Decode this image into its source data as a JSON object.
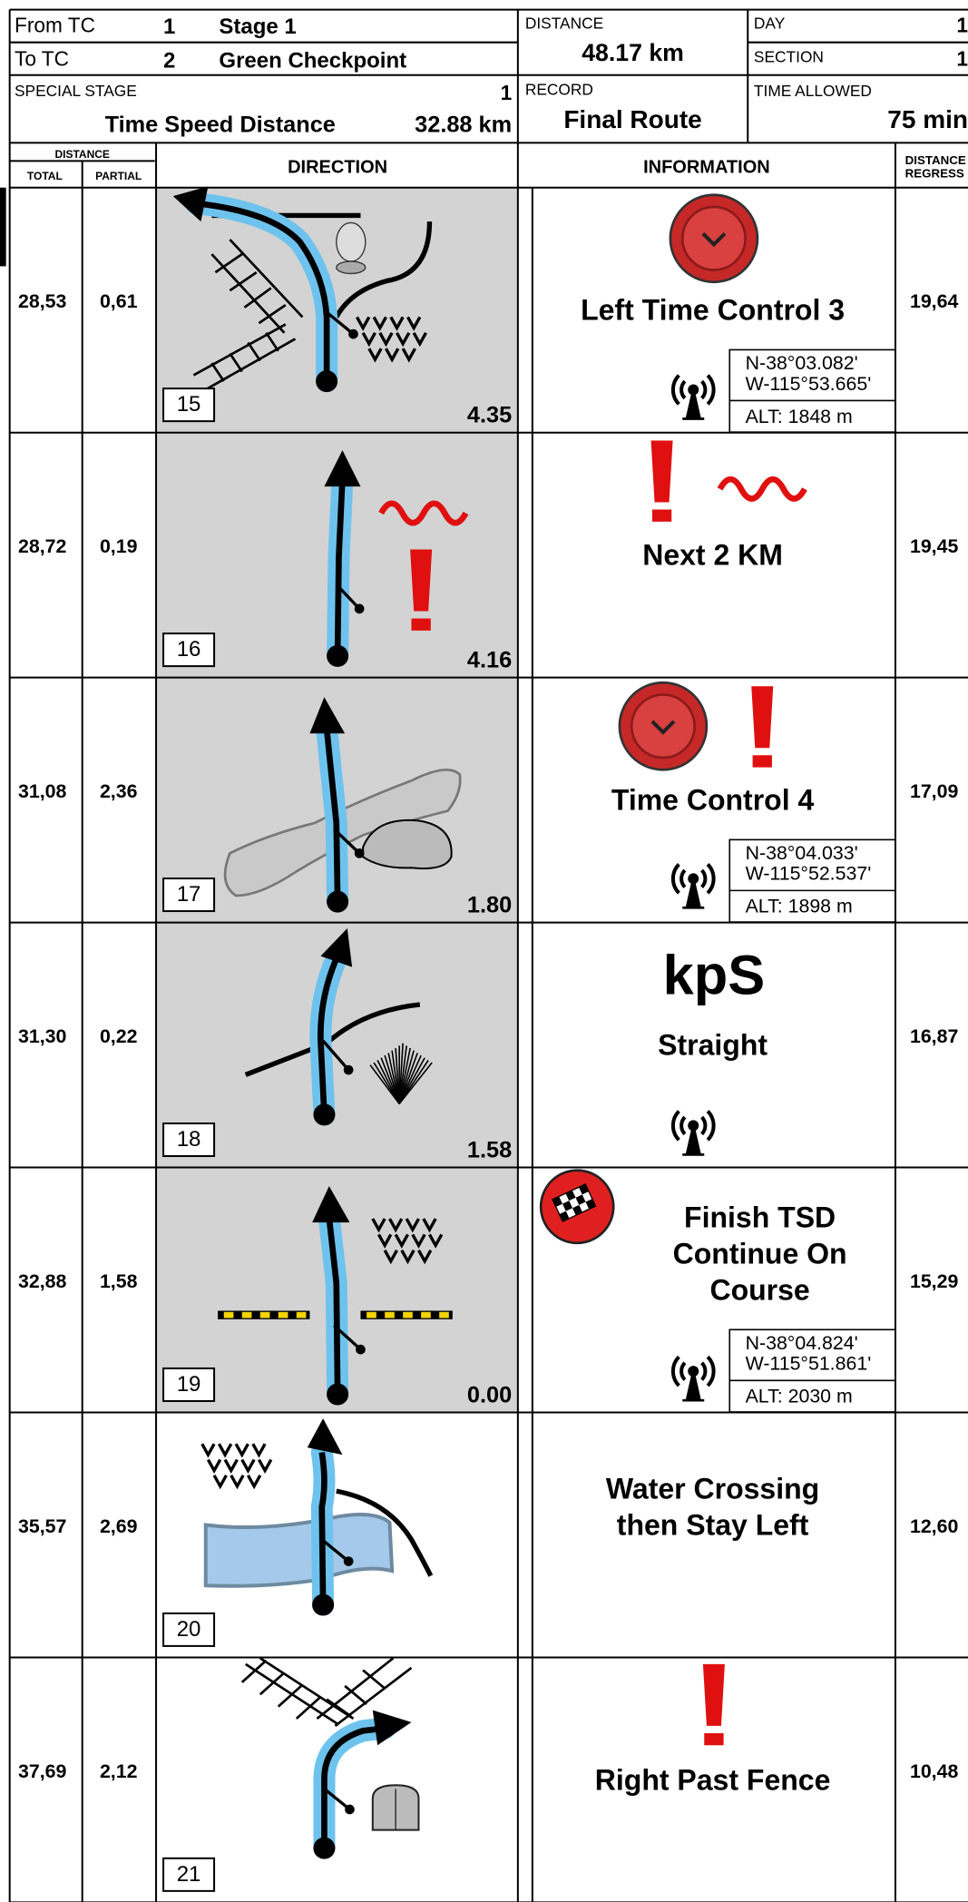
{
  "header": {
    "from_tc": {
      "label": "From TC",
      "number": "1",
      "name": "Stage 1"
    },
    "to_tc": {
      "label": "To TC",
      "number": "2",
      "name": "Green Checkpoint"
    },
    "special_stage": {
      "label": "SPECIAL STAGE",
      "number": "1",
      "name": "Time Speed Distance",
      "distance": "32.88 km"
    },
    "distance": {
      "label": "DISTANCE",
      "value": "48.17 km"
    },
    "day": {
      "label": "DAY",
      "value": "1"
    },
    "section": {
      "label": "SECTION",
      "value": "1"
    },
    "record": {
      "label": "RECORD",
      "value": "Final Route"
    },
    "time_allowed": {
      "label": "TIME ALLOWED",
      "value": "75 min"
    }
  },
  "columns": {
    "distance": "DISTANCE",
    "total": "TOTAL",
    "partial": "PARTIAL",
    "direction": "DIRECTION",
    "information": "INFORMATION",
    "regress": [
      "DISTANCE",
      "REGRESS"
    ]
  },
  "rows": [
    {
      "total": "28,53",
      "partial": "0,61",
      "number": "15",
      "heading": "4.35",
      "info": [
        "Left Time Control 3"
      ],
      "coords": {
        "lat": "N-38°03.082'",
        "lon": "W-115°53.665'",
        "alt": "ALT: 1848 m"
      },
      "regress": "19,64"
    },
    {
      "total": "28,72",
      "partial": "0,19",
      "number": "16",
      "heading": "4.16",
      "info": [
        "Next 2 KM"
      ],
      "regress": "19,45"
    },
    {
      "total": "31,08",
      "partial": "2,36",
      "number": "17",
      "heading": "1.80",
      "info": [
        "Time Control 4"
      ],
      "coords": {
        "lat": "N-38°04.033'",
        "lon": "W-115°52.537'",
        "alt": "ALT: 1898 m"
      },
      "regress": "17,09"
    },
    {
      "total": "31,30",
      "partial": "0,22",
      "number": "18",
      "heading": "1.58",
      "symbol": "kpS",
      "info": [
        "Straight"
      ],
      "regress": "16,87"
    },
    {
      "total": "32,88",
      "partial": "1,58",
      "number": "19",
      "heading": "0.00",
      "info": [
        "Finish TSD",
        "Continue On",
        "Course"
      ],
      "coords": {
        "lat": "N-38°04.824'",
        "lon": "W-115°51.861'",
        "alt": "ALT: 2030 m"
      },
      "regress": "15,29"
    },
    {
      "total": "35,57",
      "partial": "2,69",
      "number": "20",
      "info": [
        "Water Crossing",
        "then Stay Left"
      ],
      "regress": "12,60"
    },
    {
      "total": "37,69",
      "partial": "2,12",
      "number": "21",
      "info": [
        "Right Past Fence"
      ],
      "regress": "10,48"
    }
  ]
}
